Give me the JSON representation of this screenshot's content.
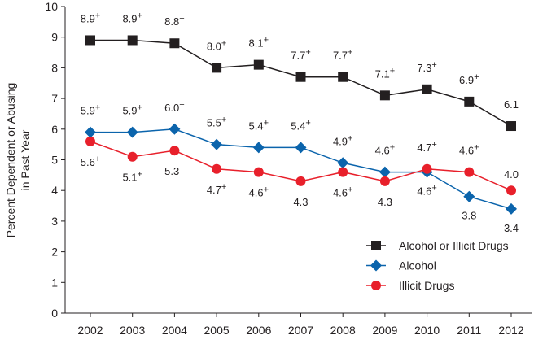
{
  "chart_data": {
    "type": "line",
    "ylabel": "Percent Dependent or Abusing in Past Year",
    "ylabel_lines": [
      "Percent Dependent or Abusing",
      "in Past Year"
    ],
    "ylim": [
      0,
      10
    ],
    "yticks": [
      "0",
      "1",
      "2",
      "3",
      "4",
      "5",
      "6",
      "7",
      "8",
      "9",
      "10"
    ],
    "categories": [
      "2002",
      "2003",
      "2004",
      "2005",
      "2006",
      "2007",
      "2008",
      "2009",
      "2010",
      "2011",
      "2012"
    ],
    "grid": false,
    "legend_position": "bottom-right",
    "series": [
      {
        "name": "Alcohol or Illicit Drugs",
        "color": "#231f20",
        "marker": "square",
        "values": [
          8.9,
          8.9,
          8.8,
          8.0,
          8.1,
          7.7,
          7.7,
          7.1,
          7.3,
          6.9,
          6.1
        ],
        "labels": [
          "8.9+",
          "8.9+",
          "8.8+",
          "8.0+",
          "8.1+",
          "7.7+",
          "7.7+",
          "7.1+",
          "7.3+",
          "6.9+",
          "6.1"
        ]
      },
      {
        "name": "Alcohol",
        "color": "#0b64ac",
        "marker": "diamond",
        "values": [
          5.9,
          5.9,
          6.0,
          5.5,
          5.4,
          5.4,
          4.9,
          4.6,
          4.6,
          3.8,
          3.4
        ],
        "labels": [
          "5.9+",
          "5.9+",
          "6.0+",
          "5.5+",
          "5.4+",
          "5.4+",
          "4.9+",
          "4.6+",
          "4.6+",
          "3.8",
          "3.4"
        ]
      },
      {
        "name": "Illicit Drugs",
        "color": "#e8202b",
        "marker": "circle",
        "values": [
          5.6,
          5.1,
          5.3,
          4.7,
          4.6,
          4.3,
          4.6,
          4.3,
          4.7,
          4.6,
          4.0
        ],
        "labels": [
          "5.6+",
          "5.1+",
          "5.3+",
          "4.7+",
          "4.6+",
          "4.3",
          "4.6+",
          "4.3",
          "4.7+",
          "4.6+",
          "4.0"
        ]
      }
    ]
  }
}
